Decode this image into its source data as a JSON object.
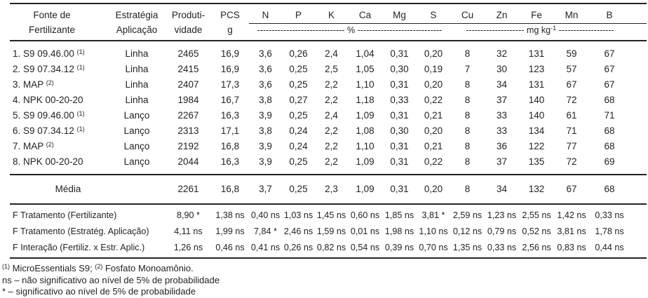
{
  "table": {
    "header": {
      "fonte_line1": "Fonte de",
      "fonte_line2": "Fertilizante",
      "estrategia_line1": "Estratégia",
      "estrategia_line2": "Aplicação",
      "produtividade_line1": "Produti-",
      "produtividade_line2": "vidade",
      "pcs_line1": "PCS",
      "pcs_line2": "g",
      "nutrients_pct": [
        "N",
        "P",
        "K",
        "Ca",
        "Mg",
        "S"
      ],
      "nutrients_mg": [
        "Cu",
        "Zn",
        "Fe",
        "Mn",
        "B"
      ],
      "pct_unit": {
        "left_dashes": "------------------------------",
        "label": "%",
        "right_dashes": "-----------------------------"
      },
      "mg_unit": {
        "left_dashes": "--------------------",
        "label": "mg kg",
        "sup": "-1",
        "right_dashes": "-------------------"
      }
    },
    "rows": [
      {
        "fonte": "1. S9 09.46.00 ",
        "sup": "(1)",
        "estrategia": "Linha",
        "values": [
          "2465",
          "16,9",
          "3,6",
          "0,26",
          "2,4",
          "1,04",
          "0,31",
          "0,20",
          "8",
          "32",
          "131",
          "59",
          "67"
        ]
      },
      {
        "fonte": "2. S9 07.34.12 ",
        "sup": "(1)",
        "estrategia": "Linha",
        "values": [
          "2415",
          "16,9",
          "3,6",
          "0,25",
          "2,5",
          "1,05",
          "0,30",
          "0,19",
          "7",
          "30",
          "123",
          "57",
          "67"
        ]
      },
      {
        "fonte": "3. MAP ",
        "sup": "(2)",
        "estrategia": "Linha",
        "values": [
          "2407",
          "17,3",
          "3,6",
          "0,25",
          "2,2",
          "1,10",
          "0,31",
          "0,20",
          "8",
          "34",
          "131",
          "67",
          "67"
        ]
      },
      {
        "fonte": "4. NPK 00-20-20",
        "sup": "",
        "estrategia": "Linha",
        "values": [
          "1984",
          "16,7",
          "3,8",
          "0,27",
          "2,2",
          "1,18",
          "0,33",
          "0,22",
          "8",
          "37",
          "140",
          "72",
          "68"
        ]
      },
      {
        "fonte": "5. S9 09.46.00 ",
        "sup": "(1)",
        "estrategia": "Lanço",
        "values": [
          "2267",
          "16,3",
          "3,9",
          "0,25",
          "2,4",
          "1,09",
          "0,31",
          "0,21",
          "8",
          "33",
          "140",
          "61",
          "71"
        ]
      },
      {
        "fonte": "6. S9 07.34.12 ",
        "sup": "(1)",
        "estrategia": "Lanço",
        "values": [
          "2313",
          "17,1",
          "3,8",
          "0,24",
          "2,2",
          "1,08",
          "0,30",
          "0,20",
          "8",
          "33",
          "134",
          "71",
          "68"
        ]
      },
      {
        "fonte": "7. MAP ",
        "sup": "(2)",
        "estrategia": "Lanço",
        "values": [
          "2192",
          "16,8",
          "3,9",
          "0,24",
          "2,2",
          "1,10",
          "0,31",
          "0,21",
          "8",
          "36",
          "122",
          "77",
          "68"
        ]
      },
      {
        "fonte": "8. NPK 00-20-20",
        "sup": "",
        "estrategia": "Lanço",
        "values": [
          "2044",
          "16,3",
          "3,9",
          "0,25",
          "2,2",
          "1,09",
          "0,31",
          "0,22",
          "8",
          "37",
          "135",
          "72",
          "69"
        ]
      }
    ],
    "media": {
      "label": "Média",
      "values": [
        "2261",
        "16,8",
        "3,7",
        "0,25",
        "2,3",
        "1,09",
        "0,31",
        "0,20",
        "8",
        "34",
        "132",
        "67",
        "68"
      ]
    },
    "f_rows": [
      {
        "label": "F Tratamento (Fertilizante)",
        "values": [
          "8,90 *",
          "1,38 ns",
          "0,40 ns",
          "1,03 ns",
          "1,45 ns",
          "0,60 ns",
          "1,85 ns",
          "3,81 *",
          "2,59 ns",
          "1,23 ns",
          "2,55 ns",
          "1,42 ns",
          "0,33 ns"
        ]
      },
      {
        "label": "F Tratamento (Estratég. Aplicação)",
        "values": [
          "4,11 ns",
          "1,99 ns",
          "7,84 *",
          "2,46 ns",
          "1,59 ns",
          "0,01 ns",
          "1,98 ns",
          "1,10 ns",
          "0,12 ns",
          "0,79 ns",
          "0,52 ns",
          "3,81 ns",
          "1,78 ns"
        ]
      },
      {
        "label": "F Interação (Fertiliz. x Estr.  Aplic.)",
        "values": [
          "1,26 ns",
          "0,46 ns",
          "0,41 ns",
          "0,26 ns",
          "0,82 ns",
          "0,54 ns",
          "0,39 ns",
          "0,70 ns",
          "1,35 ns",
          "0,33 ns",
          "2,56 ns",
          "0,83 ns",
          "0,44 ns"
        ]
      }
    ],
    "value_column_keys": [
      "produtividade",
      "pcs",
      "n",
      "p",
      "k",
      "ca",
      "mg",
      "s",
      "cu",
      "zn",
      "fe",
      "mn",
      "b"
    ]
  },
  "footnotes": {
    "f1": {
      "sup1": "(1)",
      "text1": " MicroEssentials S9; ",
      "sup2": "(2)",
      "text2": " Fosfato Monoamônio."
    },
    "line2": "ns – não significativo ao nível de 5% de probabilidade",
    "line3": "* – significativo ao nível de 5% de probabilidade"
  },
  "colors": {
    "text": "#232323",
    "background": "#ffffff",
    "rule": "#232323"
  }
}
